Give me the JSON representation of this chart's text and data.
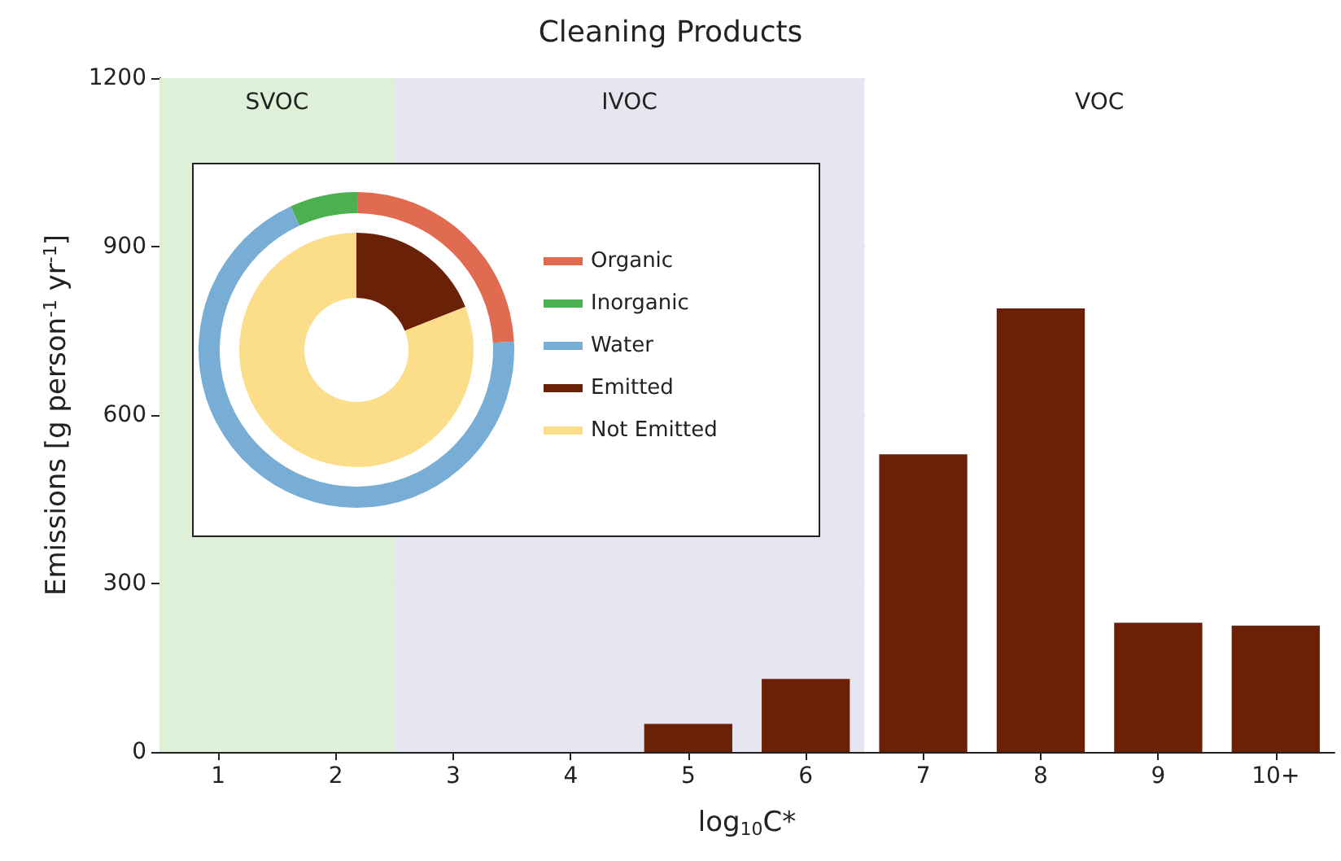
{
  "chart_data": [
    {
      "type": "bar",
      "title": "Cleaning Products",
      "xlabel": "log$_{10}$C*",
      "ylabel": "Emissions [g person$^{-1}$ yr$^{-1}$]",
      "categories": [
        "1",
        "2",
        "3",
        "4",
        "5",
        "6",
        "7",
        "8",
        "9",
        "10+"
      ],
      "values": [
        null,
        null,
        null,
        null,
        50,
        130,
        530,
        790,
        230,
        225
      ],
      "color": "#6b2008",
      "ylim": [
        0,
        1200
      ],
      "yticks": [
        0,
        300,
        600,
        900,
        1200
      ],
      "grid": "y",
      "bands": [
        {
          "axis": "x",
          "from": "1",
          "to": "2",
          "label": "SVOC",
          "color": "#dff0d8"
        },
        {
          "axis": "x",
          "from": "3",
          "to": "6",
          "label": "IVOC",
          "color": "#e6e6f0"
        },
        {
          "axis": "x",
          "from": "7",
          "to": "10+",
          "label": "VOC",
          "color": "#ffffff"
        }
      ]
    },
    {
      "type": "donut",
      "categories": [
        "Organic",
        "Inorganic",
        "Water"
      ],
      "values": [
        24,
        7,
        69
      ],
      "colors": [
        "#e06b50",
        "#4caf50",
        "#78aed6"
      ],
      "legend": "right"
    },
    {
      "type": "donut",
      "categories": [
        "Emitted",
        "Not Emitted"
      ],
      "values": [
        19,
        81
      ],
      "colors": [
        "#6b2008",
        "#fbdd8a"
      ],
      "legend": "right"
    }
  ]
}
